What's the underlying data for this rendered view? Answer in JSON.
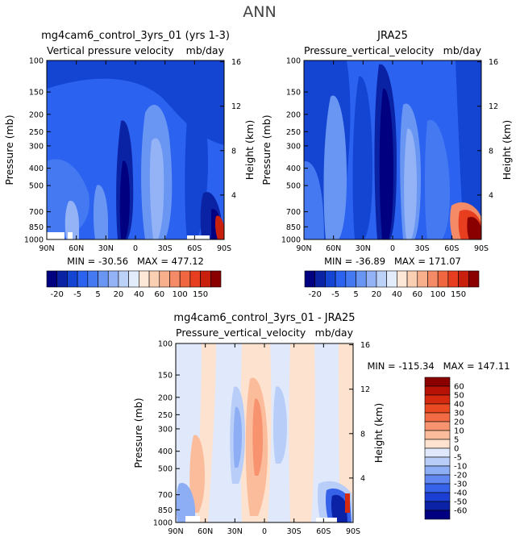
{
  "figure": {
    "title": "ANN"
  },
  "chart_data": [
    {
      "type": "heatmap",
      "title": "mg4cam6_control_3yrs_01 (yrs 1-3)",
      "subtitle_left": "Vertical pressure velocity",
      "subtitle_right": "mb/day",
      "ylabel": "Pressure (mb)",
      "y2label": "Height (km)",
      "x_ticks": [
        "90N",
        "60N",
        "30N",
        "0",
        "30S",
        "60S",
        "90S"
      ],
      "y_ticks": [
        100,
        150,
        200,
        250,
        300,
        400,
        500,
        700,
        850,
        1000
      ],
      "y2_ticks": [
        16,
        12,
        8,
        4
      ],
      "ylim": [
        1000,
        100
      ],
      "y_scale": "log",
      "stats": "MIN = -30.56   MAX = 477.12",
      "min": -30.56,
      "max": 477.12,
      "colorbar": {
        "orientation": "horizontal",
        "labels": [
          "-20",
          "-5",
          "5",
          "20",
          "40",
          "60",
          "100",
          "150"
        ],
        "colors": [
          "#000080",
          "#0a23a4",
          "#1445d2",
          "#2b63f0",
          "#4579f2",
          "#6a96f3",
          "#93b3f6",
          "#bcd1f8",
          "#e3ecfb",
          "#fde8d8",
          "#fbcfb2",
          "#f8b08c",
          "#f48b66",
          "#ef6640",
          "#e63e1e",
          "#c9200e",
          "#8a0000"
        ]
      }
    },
    {
      "type": "heatmap",
      "title": "JRA25",
      "subtitle_left": "Pressure_vertical_velocity",
      "subtitle_right": "mb/day",
      "ylabel": "Pressure (mb)",
      "y2label": "Height (km)",
      "x_ticks": [
        "90N",
        "60N",
        "30N",
        "0",
        "30S",
        "60S",
        "90S"
      ],
      "y_ticks": [
        100,
        150,
        200,
        250,
        300,
        400,
        500,
        700,
        850,
        1000
      ],
      "y2_ticks": [
        16,
        12,
        8,
        4
      ],
      "ylim": [
        1000,
        100
      ],
      "y_scale": "log",
      "stats": "MIN = -36.89   MAX = 171.07",
      "min": -36.89,
      "max": 171.07,
      "colorbar": {
        "orientation": "horizontal",
        "labels": [
          "-20",
          "-5",
          "5",
          "20",
          "40",
          "60",
          "100",
          "150"
        ],
        "colors": [
          "#000080",
          "#0a23a4",
          "#1445d2",
          "#2b63f0",
          "#4579f2",
          "#6a96f3",
          "#93b3f6",
          "#bcd1f8",
          "#e3ecfb",
          "#fde8d8",
          "#fbcfb2",
          "#f8b08c",
          "#f48b66",
          "#ef6640",
          "#e63e1e",
          "#c9200e",
          "#8a0000"
        ]
      }
    },
    {
      "type": "heatmap",
      "title": "mg4cam6_control_3yrs_01 - JRA25",
      "subtitle_left": "Pressure_vertical_velocity",
      "subtitle_right": "mb/day",
      "ylabel": "Pressure (mb)",
      "y2label": "Height (km)",
      "x_ticks": [
        "90N",
        "60N",
        "30N",
        "0",
        "30S",
        "60S",
        "90S"
      ],
      "y_ticks": [
        100,
        150,
        200,
        250,
        300,
        400,
        500,
        700,
        850,
        1000
      ],
      "y2_ticks": [
        16,
        12,
        8,
        4
      ],
      "ylim": [
        1000,
        100
      ],
      "y_scale": "log",
      "stats": "MIN = -115.34   MAX = 147.11",
      "min": -115.34,
      "max": 147.11,
      "colorbar": {
        "orientation": "vertical",
        "labels": [
          "60",
          "50",
          "40",
          "30",
          "20",
          "10",
          "5",
          "0",
          "-5",
          "-10",
          "-20",
          "-30",
          "-40",
          "-50",
          "-60"
        ],
        "colors": [
          "#8a0000",
          "#b81206",
          "#d62a10",
          "#e94a22",
          "#f26b44",
          "#f7946f",
          "#fbbc9c",
          "#fde3cf",
          "#dfe9fb",
          "#b8cdf7",
          "#8daef4",
          "#6088f0",
          "#3662ea",
          "#1a3fd2",
          "#0b22a6",
          "#000080"
        ]
      }
    }
  ]
}
